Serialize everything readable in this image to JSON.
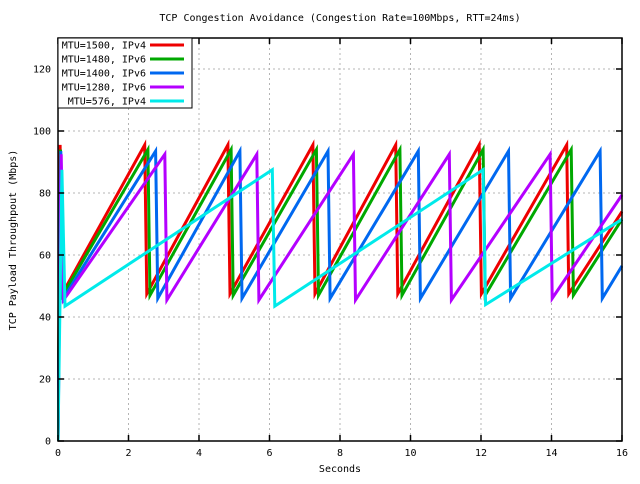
{
  "chart_data": {
    "type": "line",
    "title": "TCP Congestion Avoidance (Congestion Rate=100Mbps, RTT=24ms)",
    "xlabel": "Seconds",
    "ylabel": "TCP Payload Throughpout (Mbps)",
    "xlim": [
      0,
      16
    ],
    "ylim": [
      0,
      130
    ],
    "xticks": [
      0,
      2,
      4,
      6,
      8,
      10,
      12,
      14,
      16
    ],
    "yticks": [
      0,
      20,
      40,
      60,
      80,
      100,
      120
    ],
    "grid": true,
    "legend_position": "top-left",
    "series": [
      {
        "name": "MTU=1500, IPv4",
        "color": "#ee0000",
        "points": [
          [
            0,
            0
          ],
          [
            0.06,
            95.5
          ],
          [
            0.12,
            47.5
          ],
          [
            2.46,
            95.5
          ],
          [
            2.52,
            47.5
          ],
          [
            4.82,
            95.5
          ],
          [
            4.88,
            47.5
          ],
          [
            7.23,
            95.5
          ],
          [
            7.29,
            47.5
          ],
          [
            9.58,
            95.5
          ],
          [
            9.64,
            47.5
          ],
          [
            11.95,
            95.5
          ],
          [
            12.01,
            47.5
          ],
          [
            14.43,
            95.5
          ],
          [
            14.49,
            47.5
          ],
          [
            16,
            74
          ]
        ]
      },
      {
        "name": "MTU=1480, IPv6",
        "color": "#00a800",
        "points": [
          [
            0,
            0
          ],
          [
            0.07,
            94
          ],
          [
            0.13,
            47
          ],
          [
            2.55,
            94
          ],
          [
            2.61,
            47
          ],
          [
            4.91,
            94
          ],
          [
            4.97,
            47
          ],
          [
            7.33,
            94
          ],
          [
            7.39,
            47
          ],
          [
            9.7,
            94
          ],
          [
            9.76,
            47
          ],
          [
            12.06,
            94
          ],
          [
            12.12,
            47
          ],
          [
            14.56,
            94
          ],
          [
            14.62,
            47
          ],
          [
            16,
            71.5
          ]
        ]
      },
      {
        "name": "MTU=1400, IPv6",
        "color": "#0068f0",
        "points": [
          [
            0,
            0
          ],
          [
            0.08,
            93.5
          ],
          [
            0.15,
            46
          ],
          [
            2.77,
            93.5
          ],
          [
            2.83,
            46
          ],
          [
            5.16,
            93.5
          ],
          [
            5.22,
            46
          ],
          [
            7.66,
            93.5
          ],
          [
            7.72,
            46
          ],
          [
            10.22,
            93.5
          ],
          [
            10.28,
            46
          ],
          [
            12.78,
            93.5
          ],
          [
            12.84,
            46
          ],
          [
            15.38,
            93.5
          ],
          [
            15.44,
            46
          ],
          [
            16,
            56.5
          ]
        ]
      },
      {
        "name": "MTU=1280, IPv6",
        "color": "#b400ff",
        "points": [
          [
            0,
            0
          ],
          [
            0.09,
            92.5
          ],
          [
            0.16,
            45.5
          ],
          [
            3.03,
            92.5
          ],
          [
            3.09,
            45.5
          ],
          [
            5.64,
            92.5
          ],
          [
            5.7,
            45.5
          ],
          [
            8.38,
            92.5
          ],
          [
            8.44,
            45.5
          ],
          [
            11.1,
            92.5
          ],
          [
            11.16,
            45.5
          ],
          [
            13.96,
            92.5
          ],
          [
            14.02,
            46
          ],
          [
            16,
            79.4
          ]
        ]
      },
      {
        "name": "MTU=576, IPv4",
        "color": "#00eaea",
        "points": [
          [
            0,
            0
          ],
          [
            0.11,
            87.5
          ],
          [
            0.2,
            43.5
          ],
          [
            6.08,
            87.5
          ],
          [
            6.15,
            43.5
          ],
          [
            12.06,
            87.5
          ],
          [
            12.13,
            44
          ],
          [
            16,
            71.5
          ]
        ]
      }
    ]
  }
}
